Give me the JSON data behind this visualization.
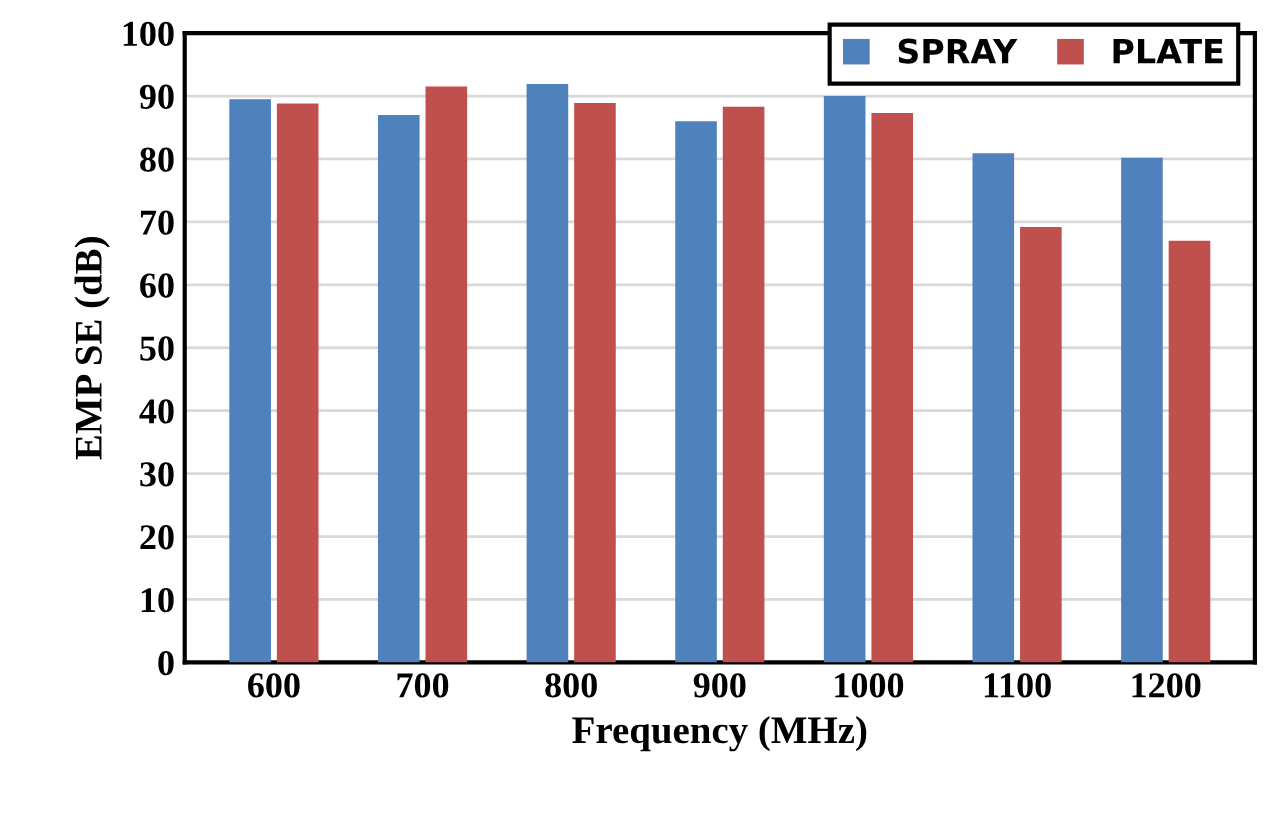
{
  "chart_data": {
    "type": "bar",
    "xlabel": "Frequency (MHz)",
    "ylabel": "EMP SE (dB)",
    "categories": [
      "600",
      "700",
      "800",
      "900",
      "1000",
      "1100",
      "1200"
    ],
    "series": [
      {
        "name": "SPRAY",
        "color": "#4f81bd",
        "values": [
          89.5,
          87.0,
          91.9,
          86.0,
          90.0,
          80.9,
          80.2
        ]
      },
      {
        "name": "PLATE",
        "color": "#c0504d",
        "values": [
          88.8,
          91.5,
          88.9,
          88.3,
          87.3,
          69.2,
          67.0
        ]
      }
    ],
    "ylim": [
      0,
      100
    ],
    "yticks": [
      0,
      10,
      20,
      30,
      40,
      50,
      60,
      70,
      80,
      90,
      100
    ],
    "grid": "y",
    "legend": "top right"
  }
}
